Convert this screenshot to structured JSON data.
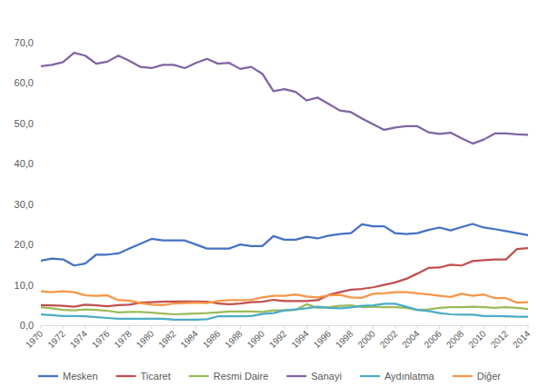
{
  "chart_data": {
    "type": "line",
    "x": [
      1970,
      1971,
      1972,
      1973,
      1974,
      1975,
      1976,
      1977,
      1978,
      1979,
      1980,
      1981,
      1982,
      1983,
      1984,
      1985,
      1986,
      1987,
      1988,
      1989,
      1990,
      1991,
      1992,
      1993,
      1994,
      1995,
      1996,
      1997,
      1998,
      1999,
      2000,
      2001,
      2002,
      2003,
      2004,
      2005,
      2006,
      2007,
      2008,
      2009,
      2010,
      2011,
      2012,
      2013,
      2014
    ],
    "xlim": [
      1970,
      2014
    ],
    "xticks": [
      1970,
      1972,
      1974,
      1976,
      1978,
      1980,
      1982,
      1984,
      1986,
      1988,
      1990,
      1992,
      1994,
      1996,
      1998,
      2000,
      2002,
      2004,
      2006,
      2008,
      2010,
      2012,
      2014
    ],
    "ylim": [
      0,
      70
    ],
    "yticks": [
      {
        "value": 0,
        "label": "0,0"
      },
      {
        "value": 10,
        "label": "10,0"
      },
      {
        "value": 20,
        "label": "20,0"
      },
      {
        "value": 30,
        "label": "30,0"
      },
      {
        "value": 40,
        "label": "40,0"
      },
      {
        "value": 50,
        "label": "50,0"
      },
      {
        "value": 60,
        "label": "60,0"
      },
      {
        "value": 70,
        "label": "70,0"
      }
    ],
    "grid": false,
    "legend": "bottom",
    "series": [
      {
        "name": "Mesken",
        "color": "#4472c4",
        "values": [
          16.0,
          16.5,
          16.3,
          14.8,
          15.3,
          17.5,
          17.5,
          17.8,
          19.0,
          20.2,
          21.4,
          21.0,
          21.0,
          21.0,
          20.0,
          19.0,
          19.0,
          19.0,
          20.0,
          19.6,
          19.6,
          22.1,
          21.2,
          21.2,
          21.9,
          21.5,
          22.2,
          22.6,
          22.8,
          25.0,
          24.5,
          24.5,
          22.8,
          22.6,
          22.8,
          23.6,
          24.2,
          23.5,
          24.3,
          25.1,
          24.2,
          23.8,
          23.3,
          22.8,
          22.3
        ]
      },
      {
        "name": "Ticaret",
        "color": "#c0504d",
        "values": [
          5.0,
          4.9,
          4.8,
          4.6,
          5.1,
          4.9,
          4.7,
          5.0,
          5.1,
          5.6,
          5.7,
          5.8,
          5.9,
          5.9,
          5.9,
          5.8,
          5.4,
          5.2,
          5.4,
          5.7,
          5.8,
          6.3,
          6.0,
          6.0,
          6.0,
          6.2,
          7.5,
          8.2,
          8.8,
          9.0,
          9.4,
          10.0,
          10.6,
          11.5,
          12.8,
          14.2,
          14.3,
          15.0,
          14.8,
          15.9,
          16.1,
          16.3,
          16.3,
          18.9,
          19.1
        ]
      },
      {
        "name": "Resmi Daire",
        "color": "#9bbb59",
        "values": [
          4.5,
          4.2,
          3.8,
          3.7,
          3.9,
          3.8,
          3.6,
          3.2,
          3.3,
          3.3,
          3.1,
          2.9,
          2.7,
          2.8,
          2.9,
          3.0,
          3.2,
          3.4,
          3.4,
          3.4,
          3.3,
          3.7,
          3.7,
          3.8,
          5.2,
          4.3,
          4.5,
          4.8,
          4.9,
          4.5,
          4.6,
          4.5,
          4.5,
          4.3,
          3.8,
          3.9,
          4.3,
          4.5,
          4.5,
          4.6,
          4.5,
          4.3,
          4.5,
          4.3,
          4.0
        ]
      },
      {
        "name": "Sanayi",
        "color": "#8064a2",
        "values": [
          64.2,
          64.5,
          65.2,
          67.5,
          66.8,
          64.8,
          65.3,
          66.8,
          65.5,
          64.0,
          63.7,
          64.5,
          64.5,
          63.7,
          65.0,
          66.0,
          64.8,
          65.0,
          63.5,
          64.0,
          62.3,
          58.0,
          58.5,
          57.8,
          55.7,
          56.4,
          54.8,
          53.2,
          52.8,
          51.2,
          49.8,
          48.4,
          49.0,
          49.3,
          49.3,
          47.8,
          47.4,
          47.7,
          46.3,
          45.0,
          46.0,
          47.5,
          47.5,
          47.3,
          47.2
        ]
      },
      {
        "name": "Aydınlatma",
        "color": "#4bacc6",
        "values": [
          2.7,
          2.5,
          2.3,
          2.3,
          2.2,
          2.0,
          1.8,
          1.6,
          1.6,
          1.6,
          1.6,
          1.6,
          1.4,
          1.4,
          1.4,
          1.5,
          2.2,
          2.2,
          2.2,
          2.3,
          2.8,
          3.0,
          3.7,
          3.9,
          4.2,
          4.6,
          4.3,
          4.2,
          4.4,
          4.8,
          4.9,
          5.3,
          5.3,
          4.6,
          3.8,
          3.5,
          3.0,
          2.7,
          2.6,
          2.6,
          2.3,
          2.3,
          2.2,
          2.1,
          2.1
        ]
      },
      {
        "name": "Diğer",
        "color": "#f79646",
        "values": [
          8.4,
          8.2,
          8.4,
          8.2,
          7.4,
          7.3,
          7.4,
          6.2,
          6.1,
          5.5,
          5.1,
          5.0,
          5.4,
          5.5,
          5.6,
          5.5,
          6.0,
          6.2,
          6.2,
          6.3,
          6.9,
          7.3,
          7.3,
          7.6,
          7.1,
          6.9,
          7.4,
          7.5,
          6.9,
          6.8,
          7.8,
          7.9,
          8.2,
          8.2,
          7.9,
          7.6,
          7.3,
          7.0,
          7.8,
          7.3,
          7.6,
          6.7,
          6.7,
          5.6,
          5.7
        ]
      }
    ]
  }
}
